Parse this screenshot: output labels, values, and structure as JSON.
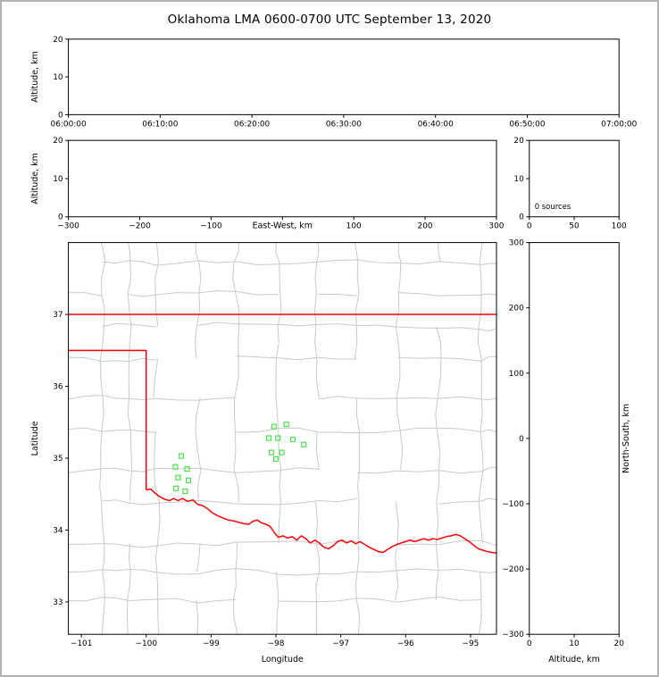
{
  "title": "Oklahoma LMA 0600-0700 UTC September 13, 2020",
  "colors": {
    "background": "#ffffff",
    "frame_border": "#b3b3b3",
    "axis": "#000000",
    "county_lines": "#c9c9c9",
    "state_border": "#ff0000",
    "station_marker": "#4ae24a",
    "text": "#000000"
  },
  "chart_data": {
    "type": "scatter",
    "title": "Oklahoma LMA 0600-0700 UTC September 13, 2020",
    "panels": {
      "altitude_vs_time": {
        "ylabel": "Altitude, km",
        "ylim": [
          0,
          20
        ],
        "y_ticks": [
          0,
          10,
          20
        ],
        "y_tick_labels": [
          "0",
          "10",
          "20"
        ],
        "x_tick_labels": [
          "06:00:00",
          "06:10:00",
          "06:20:00",
          "06:30:00",
          "06:40:00",
          "06:50:00",
          "07:00:00"
        ],
        "points": []
      },
      "altitude_vs_east_west": {
        "xlabel": "East-West, km",
        "ylabel": "Altitude, km",
        "xlim": [
          -300,
          300
        ],
        "ylim": [
          0,
          20
        ],
        "x_ticks": [
          -300,
          -200,
          -100,
          0,
          100,
          200,
          300
        ],
        "x_tick_labels": [
          "−300",
          "−200",
          "−100",
          "",
          "100",
          "200",
          "300"
        ],
        "y_ticks": [
          0,
          10,
          20
        ],
        "y_tick_labels": [
          "0",
          "10",
          "20"
        ],
        "points": []
      },
      "altitude_histogram": {
        "xlim": [
          0,
          100
        ],
        "ylim": [
          0,
          20
        ],
        "x_ticks": [
          0,
          50,
          100
        ],
        "x_tick_labels": [
          "0",
          "50",
          "100"
        ],
        "y_ticks": [
          0,
          10,
          20
        ],
        "y_tick_labels": [
          "0",
          "10",
          "20"
        ],
        "annotation": "0 sources",
        "points": []
      },
      "plan_view": {
        "xlabel": "Longitude",
        "ylabel": "Latitude",
        "xlim": [
          -101.2,
          -94.6
        ],
        "ylim": [
          32.55,
          38.0
        ],
        "x_ticks": [
          -101,
          -100,
          -99,
          -98,
          -97,
          -96,
          -95
        ],
        "x_tick_labels": [
          "−101",
          "−100",
          "−99",
          "−98",
          "−97",
          "−96",
          "−95"
        ],
        "y_ticks": [
          33,
          34,
          35,
          36,
          37
        ],
        "y_tick_labels": [
          "33",
          "34",
          "35",
          "36",
          "37"
        ],
        "stations": [
          [
            -98.03,
            35.44
          ],
          [
            -97.84,
            35.47
          ],
          [
            -98.11,
            35.28
          ],
          [
            -97.97,
            35.28
          ],
          [
            -97.74,
            35.26
          ],
          [
            -97.57,
            35.19
          ],
          [
            -98.07,
            35.08
          ],
          [
            -97.91,
            35.08
          ],
          [
            -98.0,
            34.99
          ],
          [
            -99.46,
            35.03
          ],
          [
            -99.55,
            34.88
          ],
          [
            -99.37,
            34.85
          ],
          [
            -99.51,
            34.73
          ],
          [
            -99.35,
            34.69
          ],
          [
            -99.54,
            34.58
          ],
          [
            -99.4,
            34.54
          ]
        ],
        "state_border": {
          "kansas_line": [
            [
              -101.2,
              37.0
            ],
            [
              -94.6,
              37.0
            ]
          ],
          "panhandle_line": [
            [
              -101.2,
              36.5
            ],
            [
              -100.0,
              36.5
            ],
            [
              -100.0,
              34.56
            ]
          ],
          "red_river": [
            [
              -100.0,
              34.56
            ],
            [
              -99.93,
              34.57
            ],
            [
              -99.87,
              34.52
            ],
            [
              -99.8,
              34.47
            ],
            [
              -99.72,
              34.43
            ],
            [
              -99.64,
              34.41
            ],
            [
              -99.58,
              34.44
            ],
            [
              -99.51,
              34.41
            ],
            [
              -99.44,
              34.44
            ],
            [
              -99.36,
              34.4
            ],
            [
              -99.28,
              34.42
            ],
            [
              -99.21,
              34.36
            ],
            [
              -99.13,
              34.34
            ],
            [
              -99.06,
              34.3
            ],
            [
              -98.98,
              34.24
            ],
            [
              -98.9,
              34.2
            ],
            [
              -98.82,
              34.17
            ],
            [
              -98.74,
              34.14
            ],
            [
              -98.66,
              34.13
            ],
            [
              -98.58,
              34.11
            ],
            [
              -98.5,
              34.09
            ],
            [
              -98.42,
              34.08
            ],
            [
              -98.36,
              34.12
            ],
            [
              -98.29,
              34.14
            ],
            [
              -98.22,
              34.1
            ],
            [
              -98.15,
              34.08
            ],
            [
              -98.09,
              34.05
            ],
            [
              -98.02,
              33.96
            ],
            [
              -97.96,
              33.9
            ],
            [
              -97.89,
              33.92
            ],
            [
              -97.82,
              33.89
            ],
            [
              -97.75,
              33.91
            ],
            [
              -97.68,
              33.86
            ],
            [
              -97.61,
              33.92
            ],
            [
              -97.54,
              33.88
            ],
            [
              -97.47,
              33.82
            ],
            [
              -97.4,
              33.86
            ],
            [
              -97.33,
              33.82
            ],
            [
              -97.26,
              33.76
            ],
            [
              -97.19,
              33.74
            ],
            [
              -97.12,
              33.78
            ],
            [
              -97.05,
              33.84
            ],
            [
              -96.98,
              33.86
            ],
            [
              -96.91,
              33.82
            ],
            [
              -96.84,
              33.85
            ],
            [
              -96.77,
              33.81
            ],
            [
              -96.7,
              33.84
            ],
            [
              -96.63,
              33.8
            ],
            [
              -96.56,
              33.76
            ],
            [
              -96.49,
              33.73
            ],
            [
              -96.42,
              33.7
            ],
            [
              -96.35,
              33.69
            ],
            [
              -96.28,
              33.73
            ],
            [
              -96.21,
              33.77
            ],
            [
              -96.14,
              33.8
            ],
            [
              -96.07,
              33.82
            ],
            [
              -96.0,
              33.84
            ],
            [
              -95.93,
              33.86
            ],
            [
              -95.86,
              33.84
            ],
            [
              -95.79,
              33.86
            ],
            [
              -95.72,
              33.88
            ],
            [
              -95.65,
              33.86
            ],
            [
              -95.58,
              33.88
            ],
            [
              -95.51,
              33.87
            ],
            [
              -95.44,
              33.89
            ],
            [
              -95.37,
              33.91
            ],
            [
              -95.3,
              33.92
            ],
            [
              -95.23,
              33.94
            ],
            [
              -95.16,
              33.92
            ],
            [
              -95.09,
              33.88
            ],
            [
              -95.02,
              33.84
            ],
            [
              -94.95,
              33.79
            ],
            [
              -94.88,
              33.74
            ],
            [
              -94.81,
              33.72
            ],
            [
              -94.74,
              33.7
            ],
            [
              -94.67,
              33.69
            ],
            [
              -94.6,
              33.68
            ]
          ]
        },
        "county_grid": {
          "seed": 20200913,
          "lon_step": 0.5,
          "lat_step": 0.45,
          "jitter": 0.045
        }
      },
      "ns_vs_altitude": {
        "xlabel": "Altitude, km",
        "ylabel": "North-South, km",
        "xlim": [
          0,
          20
        ],
        "ylim": [
          -300,
          300
        ],
        "x_ticks": [
          0,
          10,
          20
        ],
        "x_tick_labels": [
          "0",
          "10",
          "20"
        ],
        "y_ticks": [
          300,
          200,
          100,
          0,
          -100,
          -200,
          -300
        ],
        "y_tick_labels": [
          "300",
          "200",
          "100",
          "0",
          "−100",
          "−200",
          "−300"
        ],
        "points": []
      }
    }
  }
}
